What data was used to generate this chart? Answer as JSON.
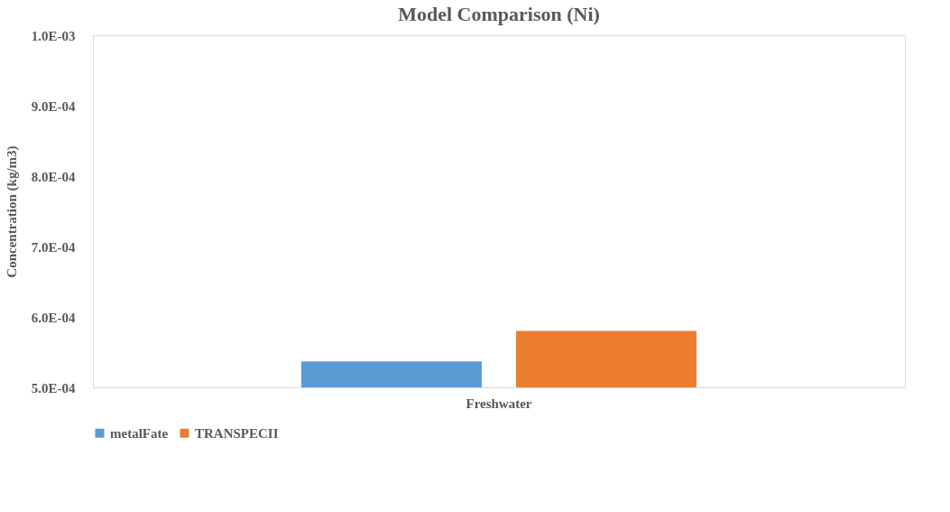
{
  "chart_data": {
    "type": "bar",
    "title": "Model Comparison (Ni)",
    "ylabel": "Concentration (kg/m3)",
    "categories": [
      "Freshwater"
    ],
    "series": [
      {
        "name": "metalFate",
        "color": "#5b9bd5",
        "values": [
          0.000537
        ]
      },
      {
        "name": "TRANSPECII",
        "color": "#ed7d31",
        "values": [
          0.00058
        ]
      }
    ],
    "ylim": [
      0.0005,
      0.001
    ],
    "yticks": [
      {
        "value": 0.0005,
        "label": "5.0E-04"
      },
      {
        "value": 0.0006,
        "label": "6.0E-04"
      },
      {
        "value": 0.0007,
        "label": "7.0E-04"
      },
      {
        "value": 0.0008,
        "label": "8.0E-04"
      },
      {
        "value": 0.0009,
        "label": "9.0E-04"
      },
      {
        "value": 0.001,
        "label": "1.0E-03"
      }
    ],
    "grid": false,
    "legend": "bottom"
  }
}
